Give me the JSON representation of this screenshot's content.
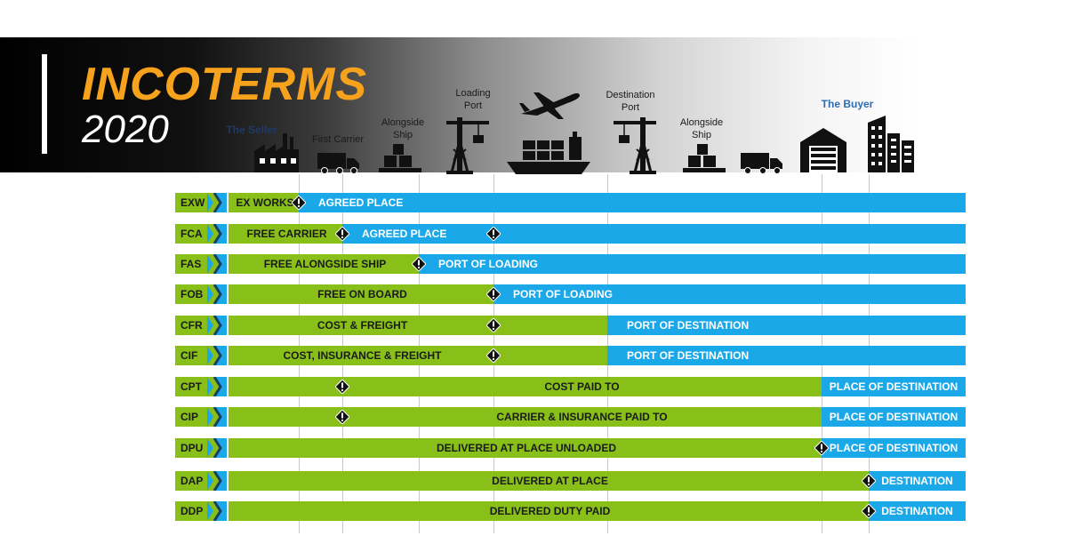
{
  "title": {
    "line1": "INCOTERMS",
    "line2": "2020"
  },
  "header_labels": {
    "seller": "The Seller",
    "first_carrier": "First Carrier",
    "alongside_ship_1": "Alongside\nShip",
    "loading_port": "Loading\nPort",
    "destination_port": "Destination\nPort",
    "alongside_ship_2": "Alongside\nShip",
    "buyer": "The Buyer"
  },
  "icons": [
    "factory-icon",
    "truck-icon",
    "boxes-icon",
    "crane-icon",
    "airplane-icon",
    "cargo-ship-icon",
    "crane-icon",
    "boxes-icon",
    "truck-icon",
    "warehouse-icon",
    "buildings-icon"
  ],
  "colors": {
    "green": "#88c019",
    "blue": "#1ba8e9",
    "title_orange": "#f6a21c",
    "buyer_blue": "#2f6db2"
  },
  "rows": [
    {
      "code": "EXW",
      "green": "EX WORKS",
      "blue": "AGREED PLACE"
    },
    {
      "code": "FCA",
      "green": "FREE CARRIER",
      "blue": "AGREED PLACE"
    },
    {
      "code": "FAS",
      "green": "FREE ALONGSIDE SHIP",
      "blue": "PORT OF LOADING"
    },
    {
      "code": "FOB",
      "green": "FREE  ON BOARD",
      "blue": "PORT OF LOADING"
    },
    {
      "code": "CFR",
      "green": "COST & FREIGHT",
      "blue": "PORT OF DESTINATION"
    },
    {
      "code": "CIF",
      "green": "COST, INSURANCE & FREIGHT",
      "blue": "PORT OF DESTINATION"
    },
    {
      "code": "CPT",
      "green": "COST PAID TO",
      "blue": "PLACE OF DESTINATION"
    },
    {
      "code": "CIP",
      "green": "CARRIER & INSURANCE PAID TO",
      "blue": "PLACE OF DESTINATION"
    },
    {
      "code": "DPU",
      "green": "DELIVERED AT PLACE UNLOADED",
      "blue": "PLACE OF DESTINATION"
    },
    {
      "code": "DAP",
      "green": "DELIVERED AT PLACE",
      "blue": "DESTINATION"
    },
    {
      "code": "DDP",
      "green": "DELIVERED DUTY PAID",
      "blue": "DESTINATION"
    }
  ]
}
